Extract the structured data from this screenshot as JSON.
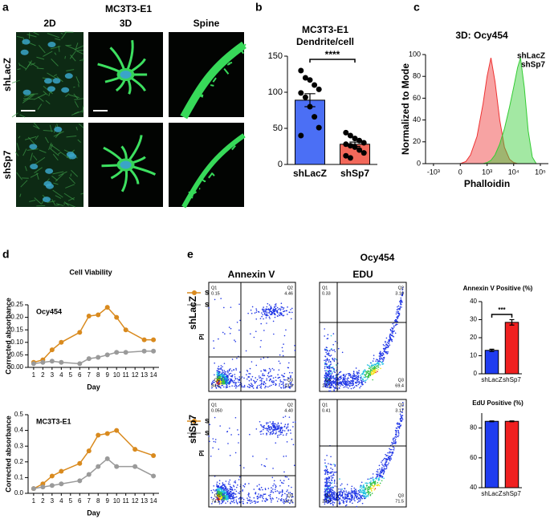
{
  "figure": {
    "panel_labels": [
      "a",
      "b",
      "c",
      "d",
      "e"
    ],
    "panel_a": {
      "title": "MC3T3-E1",
      "columns": [
        "2D",
        "3D",
        "Spine"
      ],
      "rows": [
        "shLacZ",
        "shSp7"
      ]
    },
    "panel_e": {
      "title": "Ocy454",
      "columns": [
        "Annexin V",
        "EDU"
      ],
      "rows": [
        "shLacZ",
        "shSp7"
      ],
      "y_axis_label": "PI",
      "flow_plots": [
        {
          "quadrants": [
            {
              "name": "Q1",
              "value": "0.15"
            },
            {
              "name": "Q2",
              "value": "4.46"
            },
            {
              "name": "Q3",
              "value": "13.9"
            },
            {
              "name": "Q4",
              "value": "84.4"
            }
          ]
        },
        {
          "quadrants": [
            {
              "name": "Q1",
              "value": "0.33"
            },
            {
              "name": "Q2",
              "value": "3.19"
            },
            {
              "name": "Q3",
              "value": "69.4"
            },
            {
              "name": "Q4",
              "value": "27.1"
            }
          ]
        },
        {
          "quadrants": [
            {
              "name": "Q1",
              "value": "0.050"
            },
            {
              "name": "Q2",
              "value": "4.40"
            },
            {
              "name": "Q3",
              "value": "21.5"
            },
            {
              "name": "Q4",
              "value": "74.1"
            }
          ]
        },
        {
          "quadrants": [
            {
              "name": "Q1",
              "value": "0.41"
            },
            {
              "name": "Q2",
              "value": "3.17"
            },
            {
              "name": "Q3",
              "value": "71.5"
            },
            {
              "name": "Q4",
              "value": "24.9"
            }
          ]
        }
      ]
    }
  },
  "chart_data": [
    {
      "type": "bar",
      "title": "MC3T3-E1",
      "subtitle": "Dendrite/cell",
      "categories": [
        "shLacZ",
        "shSp7"
      ],
      "values": [
        89,
        28
      ],
      "errors": [
        9,
        3
      ],
      "points": [
        [
          130,
          120,
          117,
          110,
          104,
          99,
          93,
          80,
          66,
          51,
          40
        ],
        [
          44,
          40,
          36,
          33,
          30,
          28,
          26,
          24,
          20,
          16,
          12,
          9
        ]
      ],
      "colors": [
        "#4b6ff5",
        "#f2685a"
      ],
      "ylim": [
        0,
        150
      ],
      "yticks": [
        0,
        50,
        100,
        150
      ],
      "annotation": "****"
    },
    {
      "type": "area",
      "title": "3D: Ocy454",
      "xlabel": "Phalloidin",
      "ylabel": "Normalized to Mode",
      "xscale": "biexponential",
      "x": [
        0,
        100,
        200,
        400,
        700,
        1000,
        1400,
        2000,
        3000,
        4500,
        7000,
        10000,
        14000,
        18000,
        25000,
        35000,
        50000,
        70000
      ],
      "series": [
        {
          "name": "shLacZ",
          "color": "#33cc33",
          "values": [
            0,
            0,
            0,
            0,
            0,
            1,
            3,
            8,
            18,
            32,
            52,
            70,
            88,
            97,
            70,
            30,
            6,
            0
          ]
        },
        {
          "name": "shSp7",
          "color": "#ee3333",
          "values": [
            0,
            2,
            8,
            25,
            55,
            80,
            97,
            75,
            40,
            15,
            4,
            1,
            0,
            0,
            0,
            0,
            0,
            0
          ]
        }
      ],
      "xlim": [
        -2000,
        200000
      ],
      "xticks": [
        {
          "value": -1000,
          "label": "-10³"
        },
        0,
        {
          "value": 1000,
          "label": "10³"
        },
        {
          "value": 10000,
          "label": "10⁴"
        },
        {
          "value": 100000,
          "label": "10⁵"
        }
      ],
      "ylim": [
        0,
        100
      ],
      "yticks": [
        0,
        20,
        40,
        60,
        80,
        100
      ]
    },
    {
      "type": "line",
      "title": "Cell Viability",
      "annotation": "Ocy454",
      "xlabel": "Day",
      "ylabel": "Corrected absorbance",
      "x": [
        1,
        2,
        3,
        4,
        6,
        7,
        8,
        9,
        10,
        11,
        13,
        14
      ],
      "series": [
        {
          "name": "shLacZ",
          "color": "#d98a1e",
          "values": [
            0.02,
            0.03,
            0.07,
            0.1,
            0.14,
            0.205,
            0.21,
            0.24,
            0.2,
            0.15,
            0.11,
            0.11
          ]
        },
        {
          "name": "shSp7",
          "color": "#9a9a9a",
          "values": [
            0.015,
            0.02,
            0.025,
            0.02,
            0.015,
            0.035,
            0.04,
            0.05,
            0.06,
            0.06,
            0.065,
            0.065
          ]
        }
      ],
      "xlim": [
        0.4,
        14.6
      ],
      "xticks": [
        1,
        2,
        3,
        4,
        5,
        6,
        7,
        8,
        9,
        10,
        11,
        12,
        13,
        14
      ],
      "ylim": [
        0,
        0.25
      ],
      "yticks": [
        {
          "value": 0,
          "label": "0.00"
        },
        {
          "value": 0.05,
          "label": "0.05"
        },
        {
          "value": 0.1,
          "label": "0.10"
        },
        {
          "value": 0.15,
          "label": "0.15"
        },
        {
          "value": 0.2,
          "label": "0.20"
        },
        {
          "value": 0.25,
          "label": "0.25"
        }
      ]
    },
    {
      "type": "line",
      "annotation": "MC3T3-E1",
      "xlabel": "Day",
      "ylabel": "Corrected absorbance",
      "x": [
        1,
        2,
        3,
        4,
        6,
        7,
        8,
        9,
        10,
        12,
        14
      ],
      "series": [
        {
          "name": "shLacZ",
          "color": "#d98a1e",
          "values": [
            0.03,
            0.06,
            0.11,
            0.14,
            0.19,
            0.27,
            0.37,
            0.38,
            0.4,
            0.28,
            0.24
          ]
        },
        {
          "name": "shSp7",
          "color": "#9a9a9a",
          "values": [
            0.03,
            0.04,
            0.05,
            0.06,
            0.08,
            0.12,
            0.17,
            0.22,
            0.17,
            0.17,
            0.11
          ]
        }
      ],
      "xlim": [
        0.4,
        14.6
      ],
      "xticks": [
        1,
        2,
        3,
        4,
        5,
        6,
        7,
        8,
        9,
        10,
        11,
        12,
        13,
        14
      ],
      "ylim": [
        0,
        0.5
      ],
      "yticks": [
        {
          "value": 0,
          "label": "0.0"
        },
        0.1,
        0.2,
        0.3,
        0.4,
        0.5
      ]
    },
    {
      "type": "bar",
      "title": "Annexin V Positive (%)",
      "categories": [
        "shLacZ",
        "shSp7"
      ],
      "values": [
        13,
        28.5
      ],
      "errors": [
        0.6,
        1.5
      ],
      "colors": [
        "#1f3cf0",
        "#f02020"
      ],
      "ylim": [
        0,
        40
      ],
      "yticks": [
        0,
        10,
        20,
        30,
        40
      ],
      "annotation": "***"
    },
    {
      "type": "bar",
      "title": "EdU Positive (%)",
      "categories": [
        "shLacZ",
        "shSp7"
      ],
      "values": [
        84.5,
        84.5
      ],
      "errors": [
        0.3,
        0.3
      ],
      "colors": [
        "#1f3cf0",
        "#f02020"
      ],
      "ylim": [
        40,
        90
      ],
      "yticks": [
        40,
        60,
        80
      ]
    }
  ]
}
